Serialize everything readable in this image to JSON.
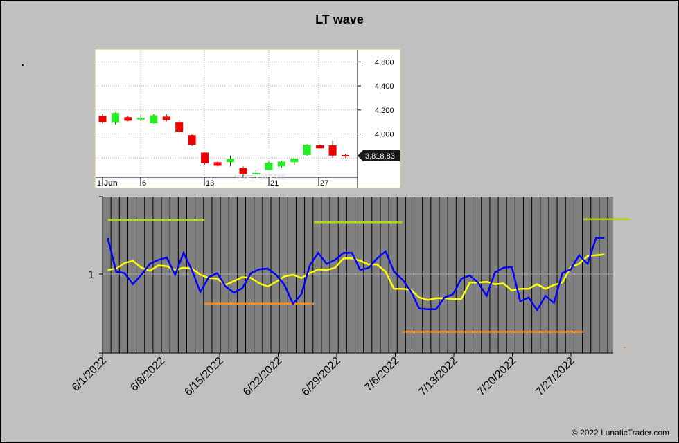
{
  "title": "LT wave",
  "copyright": "© 2022 LunaticTrader.com",
  "colors": {
    "background": "#c0c0c0",
    "plot_bg": "#808080",
    "wave": "#0000ff",
    "wave_avg": "#ffff00",
    "upper_band": "#aadd00",
    "lower_band": "#ff8c1a",
    "candle_up": "#22ee22",
    "candle_down": "#ee0000"
  },
  "chart_data": [
    {
      "type": "candlestick",
      "name": "inset",
      "watermark": "^GSPC - S&P 500",
      "y_ticks": [
        "4,600",
        "4,400",
        "4,200",
        "4,000"
      ],
      "y_tick_values": [
        4600,
        4400,
        4200,
        4000
      ],
      "ylim": [
        3640,
        4700
      ],
      "x_ticks": [
        "1",
        "Jun",
        "6",
        "13",
        "21",
        "27"
      ],
      "last_price_label": "3,818.83",
      "last_price": 3818.83,
      "candles": [
        {
          "o": 4150,
          "h": 4168,
          "l": 4085,
          "c": 4100
        },
        {
          "o": 4098,
          "h": 4180,
          "l": 4080,
          "c": 4175
        },
        {
          "o": 4140,
          "h": 4150,
          "l": 4105,
          "c": 4110
        },
        {
          "o": 4120,
          "h": 4165,
          "l": 4105,
          "c": 4135
        },
        {
          "o": 4090,
          "h": 4165,
          "l": 4085,
          "c": 4155
        },
        {
          "o": 4145,
          "h": 4165,
          "l": 4105,
          "c": 4115
        },
        {
          "o": 4100,
          "h": 4120,
          "l": 4010,
          "c": 4020
        },
        {
          "o": 3990,
          "h": 4000,
          "l": 3900,
          "c": 3910
        },
        {
          "o": 3845,
          "h": 3845,
          "l": 3745,
          "c": 3755
        },
        {
          "o": 3765,
          "h": 3770,
          "l": 3730,
          "c": 3735
        },
        {
          "o": 3765,
          "h": 3820,
          "l": 3730,
          "c": 3795
        },
        {
          "o": 3720,
          "h": 3730,
          "l": 3640,
          "c": 3665
        },
        {
          "o": 3665,
          "h": 3705,
          "l": 3635,
          "c": 3675
        },
        {
          "o": 3700,
          "h": 3770,
          "l": 3700,
          "c": 3760
        },
        {
          "o": 3730,
          "h": 3780,
          "l": 3720,
          "c": 3770
        },
        {
          "o": 3765,
          "h": 3790,
          "l": 3740,
          "c": 3795
        },
        {
          "o": 3825,
          "h": 3915,
          "l": 3820,
          "c": 3910
        },
        {
          "o": 3905,
          "h": 3910,
          "l": 3880,
          "c": 3880
        },
        {
          "o": 3905,
          "h": 3945,
          "l": 3800,
          "c": 3820
        },
        {
          "o": 3825,
          "h": 3832,
          "l": 3805,
          "c": 3819
        }
      ]
    },
    {
      "type": "line",
      "name": "main",
      "y_ticks": [
        "1"
      ],
      "x_tick_labels": [
        "6/1/2022",
        "6/8/2022",
        "6/15/2022",
        "6/22/2022",
        "6/29/2022",
        "7/6/2022",
        "7/13/2022",
        "7/20/2022",
        "7/27/2022"
      ],
      "ylim": [
        0,
        2
      ],
      "reference_line": 1,
      "series": [
        {
          "key": "wave",
          "values": [
            1.47,
            1.04,
            1.02,
            0.88,
            1.0,
            1.14,
            1.19,
            1.22,
            1.0,
            1.28,
            1.06,
            0.78,
            0.97,
            1.02,
            0.85,
            0.77,
            0.83,
            1.02,
            1.07,
            1.08,
            1.0,
            0.87,
            0.63,
            0.75,
            1.12,
            1.28,
            1.14,
            1.19,
            1.28,
            1.28,
            1.06,
            1.09,
            1.21,
            1.3,
            1.04,
            0.94,
            0.79,
            0.57,
            0.56,
            0.56,
            0.71,
            0.75,
            0.95,
            0.99,
            0.9,
            0.73,
            1.03,
            1.09,
            1.1,
            0.66,
            0.71,
            0.55,
            0.73,
            0.64,
            1.02,
            1.07,
            1.25,
            1.14,
            1.47,
            1.47
          ]
        },
        {
          "key": "wave_avg",
          "values": [
            1.06,
            1.08,
            1.15,
            1.18,
            1.09,
            1.05,
            1.12,
            1.11,
            1.06,
            1.09,
            1.08,
            1.0,
            0.96,
            0.95,
            0.87,
            0.92,
            0.97,
            0.96,
            0.89,
            0.85,
            0.91,
            0.98,
            1.0,
            0.96,
            1.02,
            1.07,
            1.06,
            1.09,
            1.21,
            1.21,
            1.18,
            1.13,
            1.13,
            1.04,
            0.82,
            0.82,
            0.81,
            0.71,
            0.68,
            0.7,
            0.7,
            0.69,
            0.69,
            0.9,
            0.9,
            0.91,
            0.88,
            0.89,
            0.8,
            0.82,
            0.82,
            0.88,
            0.82,
            0.87,
            0.9,
            1.1,
            1.14,
            1.24,
            1.25,
            1.26
          ]
        }
      ],
      "bands": [
        {
          "key": "upper_band",
          "level": 1.7,
          "from": 0,
          "to": 11.5
        },
        {
          "key": "lower_band",
          "level": 0.63,
          "from": 11.5,
          "to": 24.5
        },
        {
          "key": "upper_band",
          "level": 1.67,
          "from": 24.5,
          "to": 35
        },
        {
          "key": "lower_band",
          "level": 0.27,
          "from": 35,
          "to": 56.5
        },
        {
          "key": "upper_band",
          "level": 1.71,
          "from": 56.5,
          "to": 62
        }
      ]
    }
  ]
}
